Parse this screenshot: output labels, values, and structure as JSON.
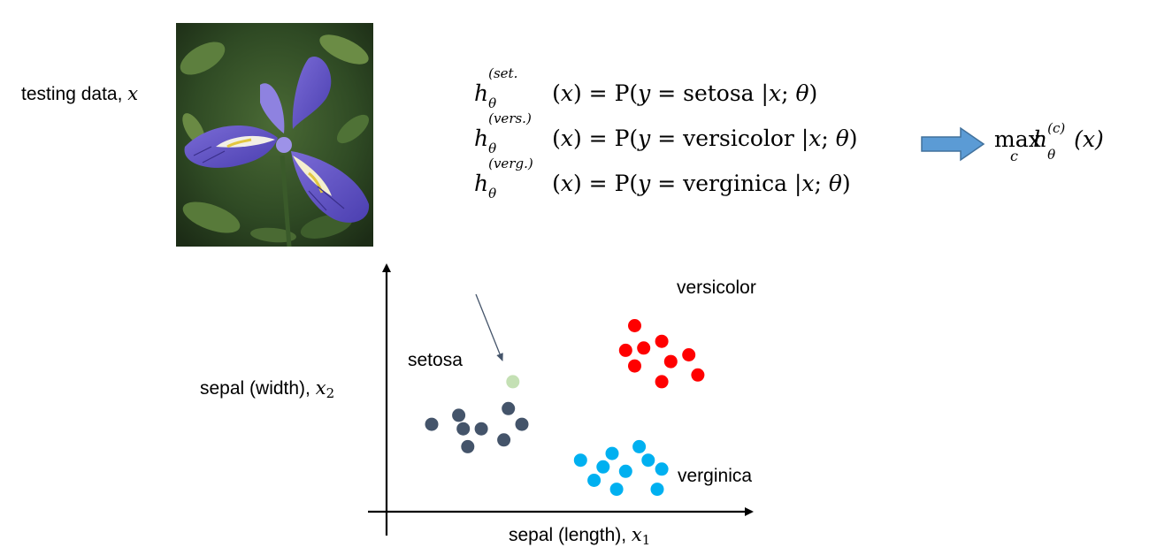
{
  "testing_label": {
    "text": "testing data, ",
    "var": "x"
  },
  "formulas": [
    {
      "sup": "(set.",
      "sub": "θ",
      "rhs_pre": "(",
      "arg": "x",
      "rhs_mid": ") = P(",
      "y": "y",
      "eq": " = setosa |",
      "x": "x",
      "sep": "; ",
      "theta": "θ",
      "close": ")"
    },
    {
      "sup": "(vers.)",
      "sub": "θ",
      "rhs_pre": "(",
      "arg": "x",
      "rhs_mid": ") = P(",
      "y": "y",
      "eq": " = versicolor |",
      "x": "x",
      "sep": "; ",
      "theta": "θ",
      "close": ")"
    },
    {
      "sup": "(verg.)",
      "sub": "θ",
      "rhs_pre": "(",
      "arg": "x",
      "rhs_mid": ") = P(",
      "y": "y",
      "eq": " = verginica |",
      "x": "x",
      "sep": "; ",
      "theta": "θ",
      "close": ")"
    }
  ],
  "max_expr": {
    "op": "max",
    "sub": "c",
    "h": "h",
    "sup": "(c)",
    "theta": "θ",
    "arg": "(x)"
  },
  "plot": {
    "xlabel": "sepal (length), ",
    "xlabel_var": "x",
    "xlabel_sub": "1",
    "ylabel": "sepal (width), ",
    "ylabel_var": "x",
    "ylabel_sub": "2"
  },
  "chart_data": {
    "type": "scatter",
    "series": [
      {
        "name": "setosa",
        "color": "#44546a",
        "points": [
          [
            1.0,
            3.9
          ],
          [
            1.6,
            4.3
          ],
          [
            1.7,
            3.7
          ],
          [
            2.1,
            3.7
          ],
          [
            2.7,
            4.6
          ],
          [
            3.0,
            3.9
          ],
          [
            1.8,
            2.9
          ],
          [
            2.6,
            3.2
          ]
        ]
      },
      {
        "name": "versicolor",
        "color": "#ff0000",
        "points": [
          [
            5.5,
            8.3
          ],
          [
            5.3,
            7.2
          ],
          [
            5.7,
            7.3
          ],
          [
            6.1,
            7.6
          ],
          [
            5.5,
            6.5
          ],
          [
            6.3,
            6.7
          ],
          [
            6.7,
            7.0
          ],
          [
            6.1,
            5.8
          ],
          [
            6.9,
            6.1
          ]
        ]
      },
      {
        "name": "verginica",
        "color": "#00b0f0",
        "points": [
          [
            4.3,
            2.3
          ],
          [
            5.0,
            2.6
          ],
          [
            5.6,
            2.9
          ],
          [
            4.8,
            2.0
          ],
          [
            5.3,
            1.8
          ],
          [
            5.8,
            2.3
          ],
          [
            6.1,
            1.9
          ],
          [
            4.6,
            1.4
          ],
          [
            5.1,
            1.0
          ],
          [
            6.0,
            1.0
          ]
        ]
      },
      {
        "name": "test point",
        "color": "#c4e0b4",
        "points": [
          [
            2.8,
            5.8
          ]
        ]
      }
    ],
    "xlim": [
      0,
      8
    ],
    "ylim": [
      0,
      11
    ],
    "grid": false
  }
}
